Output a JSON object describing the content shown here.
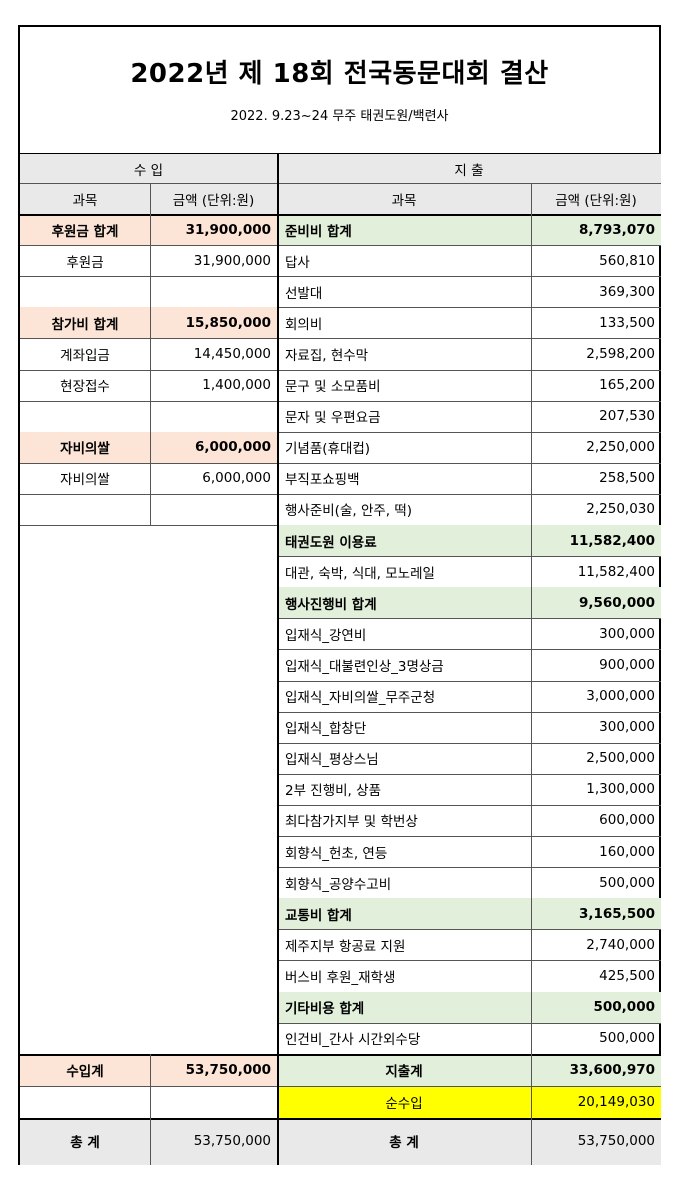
{
  "title": "2022년 제 18회 전국동문대회 결산",
  "subtitle": "2022. 9.23~24   무주 태권도원/백련사",
  "income": {
    "header": "수  입",
    "col_item": "과목",
    "col_amount": "금액 (단위:원)",
    "rows": [
      {
        "label": "후원금 합계",
        "amount": "31,900,000",
        "type": "subtotal"
      },
      {
        "label": "후원금",
        "amount": "31,900,000",
        "type": "item"
      },
      {
        "label": "",
        "amount": "",
        "type": "blank"
      },
      {
        "label": "참가비 합계",
        "amount": "15,850,000",
        "type": "subtotal"
      },
      {
        "label": "계좌입금",
        "amount": "14,450,000",
        "type": "item"
      },
      {
        "label": "현장접수",
        "amount": "1,400,000",
        "type": "item"
      },
      {
        "label": "",
        "amount": "",
        "type": "blank"
      },
      {
        "label": "자비의쌀",
        "amount": "6,000,000",
        "type": "subtotal"
      },
      {
        "label": "자비의쌀",
        "amount": "6,000,000",
        "type": "item"
      },
      {
        "label": "",
        "amount": "",
        "type": "blank"
      }
    ],
    "total_label": "수입계",
    "total_amount": "53,750,000",
    "grand_label": "총   계",
    "grand_amount": "53,750,000"
  },
  "expense": {
    "header": "지  출",
    "col_item": "과목",
    "col_amount": "금액 (단위:원)",
    "rows": [
      {
        "label": "준비비 합계",
        "amount": "8,793,070",
        "type": "subtotal"
      },
      {
        "label": "답사",
        "amount": "560,810",
        "type": "item"
      },
      {
        "label": "선발대",
        "amount": "369,300",
        "type": "item"
      },
      {
        "label": "회의비",
        "amount": "133,500",
        "type": "item"
      },
      {
        "label": "자료집, 현수막",
        "amount": "2,598,200",
        "type": "item"
      },
      {
        "label": "문구 및 소모품비",
        "amount": "165,200",
        "type": "item"
      },
      {
        "label": "문자 및 우편요금",
        "amount": "207,530",
        "type": "item"
      },
      {
        "label": "기념품(휴대컵)",
        "amount": "2,250,000",
        "type": "item"
      },
      {
        "label": "부직포쇼핑백",
        "amount": "258,500",
        "type": "item"
      },
      {
        "label": "행사준비(술, 안주, 떡)",
        "amount": "2,250,030",
        "type": "item"
      },
      {
        "label": "태권도원 이용료",
        "amount": "11,582,400",
        "type": "subtotal"
      },
      {
        "label": "대관, 숙박, 식대, 모노레일",
        "amount": "11,582,400",
        "type": "item"
      },
      {
        "label": "행사진행비 합계",
        "amount": "9,560,000",
        "type": "subtotal"
      },
      {
        "label": "입재식_강연비",
        "amount": "300,000",
        "type": "item"
      },
      {
        "label": "입재식_대불련인상_3명상금",
        "amount": "900,000",
        "type": "item"
      },
      {
        "label": "입재식_자비의쌀_무주군청",
        "amount": "3,000,000",
        "type": "item"
      },
      {
        "label": "입재식_합창단",
        "amount": "300,000",
        "type": "item"
      },
      {
        "label": "입재식_평상스님",
        "amount": "2,500,000",
        "type": "item"
      },
      {
        "label": "2부 진행비, 상품",
        "amount": "1,300,000",
        "type": "item"
      },
      {
        "label": "최다참가지부 및 학번상",
        "amount": "600,000",
        "type": "item"
      },
      {
        "label": "회향식_헌초, 연등",
        "amount": "160,000",
        "type": "item"
      },
      {
        "label": "회향식_공양수고비",
        "amount": "500,000",
        "type": "item"
      },
      {
        "label": "교통비 합계",
        "amount": "3,165,500",
        "type": "subtotal"
      },
      {
        "label": "제주지부 항공료 지원",
        "amount": "2,740,000",
        "type": "item"
      },
      {
        "label": "버스비 후원_재학생",
        "amount": "425,500",
        "type": "item"
      },
      {
        "label": "기타비용 합계",
        "amount": "500,000",
        "type": "subtotal"
      },
      {
        "label": "인건비_간사 시간외수당",
        "amount": "500,000",
        "type": "item"
      }
    ],
    "total_label": "지출계",
    "total_amount": "33,600,970",
    "net_label": "순수입",
    "net_amount": "20,149,030",
    "grand_label": "총   계",
    "grand_amount": "53,750,000"
  },
  "colors": {
    "income_subtotal": "#fce4d6",
    "expense_subtotal": "#e2efda",
    "header": "#e9e9e9",
    "net_highlight": "#ffff00"
  }
}
